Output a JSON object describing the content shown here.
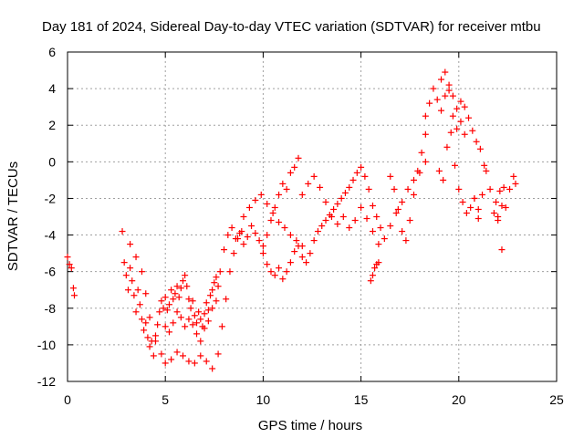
{
  "chart_data": {
    "type": "scatter",
    "title": "Day 181 of 2024, Sidereal Day-to-day VTEC variation (SDTVAR) for receiver mtbu",
    "xlabel": "GPS time / hours",
    "ylabel": "SDTVAR / TECUs",
    "xlim": [
      0,
      25
    ],
    "ylim": [
      -12,
      6
    ],
    "xticks": [
      0,
      5,
      10,
      15,
      20,
      25
    ],
    "yticks": [
      -12,
      -10,
      -8,
      -6,
      -4,
      -2,
      0,
      2,
      4,
      6
    ],
    "grid": true,
    "marker": "+",
    "color": "#ff0000",
    "series": [
      {
        "name": "SDTVAR",
        "x": [
          0.0,
          0.1,
          0.2,
          0.3,
          0.35,
          2.8,
          2.9,
          3.0,
          3.1,
          3.2,
          3.3,
          3.4,
          3.5,
          3.6,
          3.7,
          3.8,
          3.9,
          4.0,
          4.1,
          4.2,
          4.3,
          4.4,
          4.5,
          4.6,
          4.7,
          4.8,
          4.9,
          5.0,
          5.1,
          5.2,
          5.3,
          5.4,
          5.5,
          5.6,
          5.7,
          5.8,
          5.9,
          6.0,
          6.1,
          6.2,
          6.3,
          6.4,
          6.5,
          6.6,
          6.7,
          6.8,
          6.9,
          7.0,
          7.1,
          7.2,
          7.3,
          7.4,
          7.5,
          7.6,
          7.7,
          7.8,
          3.2,
          3.5,
          3.8,
          4.0,
          4.2,
          4.5,
          4.8,
          5.0,
          5.3,
          5.6,
          5.9,
          6.2,
          6.5,
          6.8,
          7.1,
          7.4,
          7.7,
          7.9,
          8.1,
          8.3,
          8.5,
          8.7,
          8.9,
          5.0,
          5.2,
          5.4,
          5.6,
          5.8,
          6.0,
          6.2,
          6.4,
          6.6,
          6.8,
          7.0,
          7.2,
          7.4,
          7.6,
          8.0,
          8.2,
          8.4,
          8.6,
          8.8,
          9.0,
          9.2,
          9.4,
          9.6,
          9.8,
          10.0,
          10.2,
          10.4,
          10.6,
          10.8,
          11.0,
          11.2,
          11.4,
          11.6,
          11.8,
          9.0,
          9.3,
          9.6,
          9.9,
          10.2,
          10.5,
          10.8,
          11.1,
          11.4,
          11.7,
          12.0,
          10.0,
          10.2,
          10.4,
          10.6,
          10.8,
          11.0,
          11.2,
          11.4,
          11.6,
          11.8,
          12.0,
          12.2,
          12.4,
          12.6,
          12.8,
          13.0,
          13.2,
          13.4,
          13.6,
          13.8,
          14.0,
          14.2,
          14.4,
          14.6,
          14.8,
          15.0,
          15.2,
          15.4,
          15.6,
          15.8,
          16.0,
          12.0,
          12.3,
          12.6,
          12.9,
          13.2,
          13.5,
          13.8,
          14.1,
          14.4,
          14.7,
          15.0,
          15.3,
          15.6,
          15.9,
          16.2,
          16.5,
          16.8,
          17.1,
          17.4,
          17.7,
          18.0,
          18.3,
          15.5,
          15.6,
          15.7,
          15.8,
          15.9,
          16.5,
          16.7,
          16.9,
          17.1,
          17.3,
          17.5,
          17.7,
          17.9,
          18.1,
          18.3,
          18.3,
          18.5,
          18.7,
          18.9,
          19.1,
          19.3,
          19.5,
          19.7,
          19.9,
          20.1,
          20.3,
          20.5,
          20.7,
          20.9,
          21.1,
          21.3,
          19.0,
          19.2,
          19.4,
          19.6,
          19.8,
          20.0,
          20.2,
          20.4,
          20.6,
          20.8,
          21.0,
          19.1,
          19.3,
          19.5,
          19.7,
          19.9,
          20.1,
          20.3,
          20.8,
          21.0,
          21.2,
          21.4,
          21.6,
          21.8,
          22.0,
          22.2,
          22.4,
          22.6,
          22.8,
          22.9,
          21.9,
          22.0,
          22.1,
          22.2,
          22.3
        ],
        "y": [
          -5.2,
          -5.6,
          -5.8,
          -6.9,
          -7.3,
          -3.8,
          -5.5,
          -6.2,
          -7.0,
          -5.8,
          -6.5,
          -7.3,
          -8.2,
          -7.0,
          -7.8,
          -8.6,
          -9.2,
          -8.8,
          -9.6,
          -10.1,
          -9.8,
          -10.6,
          -9.5,
          -8.9,
          -8.2,
          -7.6,
          -8.0,
          -7.4,
          -8.1,
          -7.8,
          -7.0,
          -7.5,
          -7.2,
          -6.8,
          -7.4,
          -6.9,
          -6.5,
          -6.2,
          -6.8,
          -7.5,
          -8.0,
          -7.6,
          -8.4,
          -8.8,
          -8.2,
          -8.6,
          -9.0,
          -8.3,
          -7.7,
          -8.1,
          -7.3,
          -7.0,
          -6.6,
          -6.3,
          -6.8,
          -6.0,
          -4.5,
          -5.2,
          -6.0,
          -7.2,
          -8.5,
          -9.8,
          -10.5,
          -11.0,
          -10.8,
          -10.4,
          -10.6,
          -10.9,
          -11.0,
          -10.6,
          -10.9,
          -11.3,
          -10.5,
          -9.0,
          -7.5,
          -6.0,
          -5.0,
          -4.2,
          -3.8,
          -9.0,
          -9.3,
          -8.8,
          -8.2,
          -8.5,
          -9.0,
          -8.6,
          -8.9,
          -9.4,
          -9.8,
          -9.1,
          -8.7,
          -8.0,
          -7.6,
          -4.8,
          -4.0,
          -3.6,
          -4.2,
          -3.9,
          -4.5,
          -4.1,
          -3.5,
          -3.9,
          -4.3,
          -4.6,
          -4.0,
          -3.2,
          -2.5,
          -1.8,
          -1.2,
          -1.5,
          -0.6,
          -0.3,
          0.2,
          -3.0,
          -2.5,
          -2.1,
          -1.8,
          -2.3,
          -2.8,
          -3.3,
          -3.6,
          -4.0,
          -4.3,
          -4.6,
          -5.0,
          -5.6,
          -6.0,
          -6.2,
          -5.8,
          -6.4,
          -6.0,
          -5.5,
          -4.9,
          -4.6,
          -5.2,
          -5.5,
          -5.0,
          -4.3,
          -3.8,
          -3.5,
          -3.2,
          -2.9,
          -2.6,
          -2.3,
          -2.0,
          -1.7,
          -1.4,
          -1.0,
          -0.6,
          -0.3,
          -0.8,
          -1.5,
          -2.4,
          -3.0,
          -3.6,
          -1.8,
          -1.2,
          -0.8,
          -1.4,
          -2.2,
          -3.0,
          -3.4,
          -3.0,
          -3.6,
          -3.2,
          -2.5,
          -3.1,
          -3.8,
          -4.5,
          -4.2,
          -3.5,
          -2.8,
          -2.2,
          -1.5,
          -1.0,
          -0.6,
          0.0,
          -6.5,
          -6.2,
          -5.8,
          -5.6,
          -5.5,
          -0.8,
          -1.5,
          -2.6,
          -3.8,
          -4.3,
          -3.2,
          -1.8,
          -0.5,
          0.5,
          1.5,
          2.5,
          3.2,
          4.0,
          3.4,
          2.8,
          3.6,
          3.9,
          2.5,
          1.8,
          3.3,
          3.0,
          2.4,
          1.7,
          1.1,
          0.7,
          -0.2,
          -0.5,
          -1.0,
          0.8,
          1.6,
          -0.2,
          -1.5,
          -2.2,
          -2.8,
          -2.5,
          -2.0,
          -3.1,
          4.5,
          4.9,
          4.2,
          3.6,
          2.9,
          2.2,
          1.5,
          -2.0,
          -2.6,
          -1.8,
          -0.5,
          -1.5,
          -2.8,
          -3.2,
          -4.8,
          -2.5,
          -1.5,
          -0.8,
          -1.2,
          -2.2,
          -3.0,
          -1.6,
          -2.4,
          -1.4
        ]
      }
    ]
  }
}
